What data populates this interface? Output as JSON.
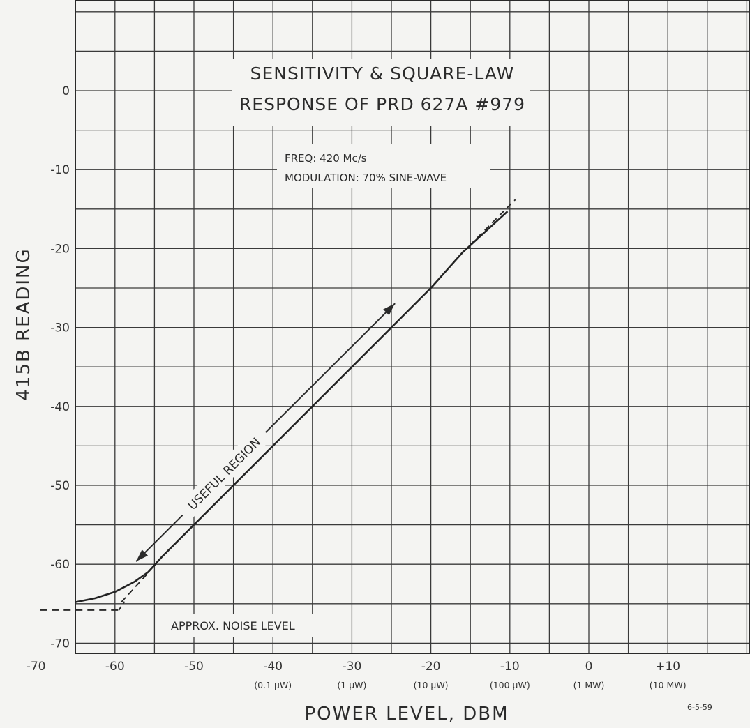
{
  "chart_data": {
    "type": "line",
    "title_lines": [
      "SENSITIVITY & SQUARE-LAW",
      "RESPONSE OF PRD 627A #979"
    ],
    "notes": [
      "FREQ: 420 Mc/s",
      "MODULATION: 70% SINE-WAVE"
    ],
    "xlabel": "POWER LEVEL, DBM",
    "ylabel": "415B READING",
    "xlim": [
      -65,
      15
    ],
    "ylim": [
      -70,
      10
    ],
    "x_ticks": [
      {
        "value": -70,
        "label": "-70",
        "sub": ""
      },
      {
        "value": -60,
        "label": "-60",
        "sub": ""
      },
      {
        "value": -50,
        "label": "-50",
        "sub": ""
      },
      {
        "value": -40,
        "label": "-40",
        "sub": "(0.1 μW)"
      },
      {
        "value": -30,
        "label": "-30",
        "sub": "(1 μW)"
      },
      {
        "value": -20,
        "label": "-20",
        "sub": "(10 μW)"
      },
      {
        "value": -10,
        "label": "-10",
        "sub": "(100 μW)"
      },
      {
        "value": 0,
        "label": "0",
        "sub": "(1 MW)"
      },
      {
        "value": 10,
        "label": "+10",
        "sub": "(10 MW)"
      }
    ],
    "y_ticks": [
      {
        "value": 0,
        "label": "0"
      },
      {
        "value": -10,
        "label": "-10"
      },
      {
        "value": -20,
        "label": "-20"
      },
      {
        "value": -30,
        "label": "-30"
      },
      {
        "value": -40,
        "label": "-40"
      },
      {
        "value": -50,
        "label": "-50"
      },
      {
        "value": -60,
        "label": "-60"
      },
      {
        "value": -70,
        "label": "-70"
      }
    ],
    "grid": true,
    "series": [
      {
        "style": "solid",
        "x": [
          -65,
          -62.5,
          -60,
          -57.5,
          -55.8,
          -54,
          -50,
          -40,
          -30,
          -20,
          -16,
          -10.3
        ],
        "y": [
          -64.8,
          -64.3,
          -63.5,
          -62.2,
          -61,
          -59,
          -55,
          -45,
          -35,
          -25,
          -20.5,
          -15.3
        ]
      },
      {
        "style": "dashed",
        "x": [
          -59.2,
          -55.8
        ],
        "y": [
          -64.8,
          -61.1
        ]
      },
      {
        "style": "dashed",
        "x": [
          -16,
          -9.3
        ],
        "y": [
          -20.5,
          -13.8
        ]
      }
    ],
    "noise_level": {
      "label": "APPROX. NOISE LEVEL",
      "value": -65.8,
      "x_range": [
        -69.5,
        -59.5
      ]
    },
    "useful_region": {
      "label": "USEFUL REGION",
      "x_range": [
        -56.8,
        -22.6
      ],
      "y_range": [
        -60.6,
        -26.5
      ]
    },
    "date_stamp": "6-5-59"
  }
}
